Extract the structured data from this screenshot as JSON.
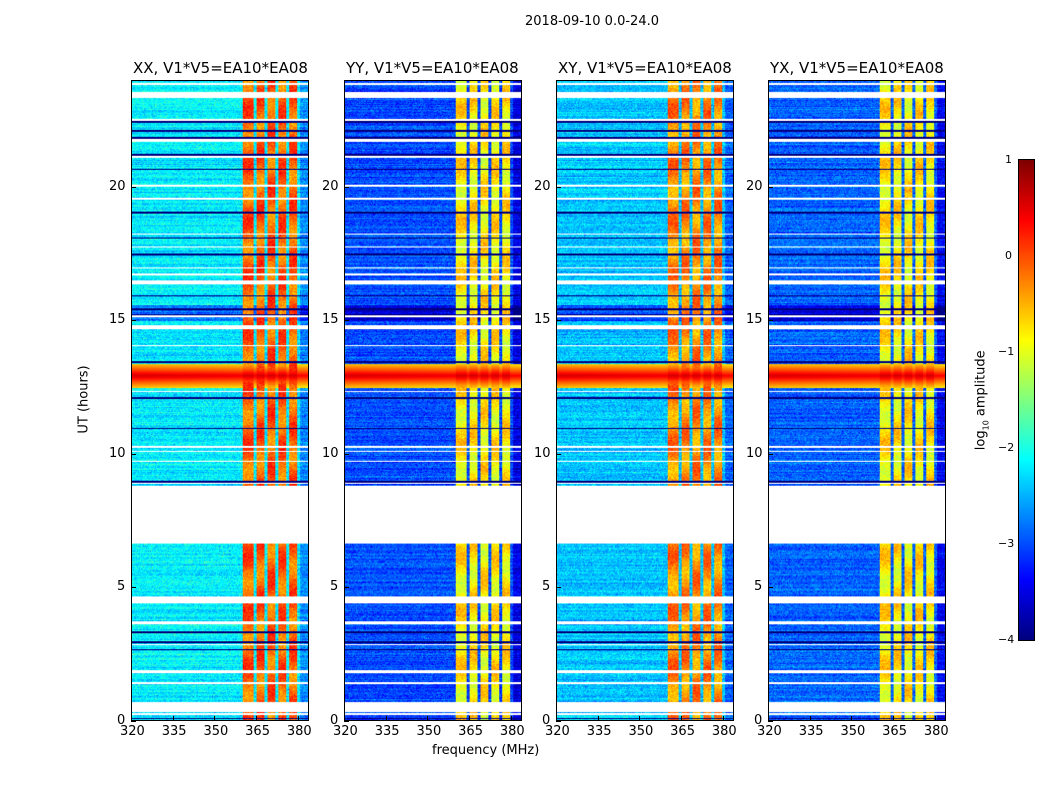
{
  "chart_data": {
    "type": "heatmap",
    "title": "2018-09-10 0.0-24.0",
    "xlabel": "frequency (MHz)",
    "ylabel": "UT (hours)",
    "xlim": [
      320,
      384
    ],
    "ylim": [
      0,
      24
    ],
    "xticks": [
      "320",
      "335",
      "350",
      "365",
      "380"
    ],
    "yticks": [
      "0",
      "5",
      "10",
      "15",
      "20"
    ],
    "colorbar": {
      "label": "log10 amplitude",
      "label_main": "log",
      "label_sub": "10",
      "label_rest": " amplitude",
      "colormap": "jet",
      "range": [
        -4,
        1
      ],
      "ticks": [
        "1",
        "0",
        "−1",
        "−2",
        "−3",
        "−4"
      ]
    },
    "flagged_time_ranges_hours": [
      [
        0.3,
        0.7
      ],
      [
        4.4,
        4.65
      ],
      [
        6.65,
        8.7
      ],
      [
        23.4,
        23.6
      ]
    ],
    "rfi_bands_mhz": [
      [
        360,
        364
      ],
      [
        365,
        368
      ],
      [
        369,
        372
      ],
      [
        373,
        376
      ],
      [
        377,
        380
      ]
    ],
    "broadband_rfi_hours": [
      12.5,
      13.4
    ],
    "panels": [
      {
        "title": "XX, V1*V5=EA10*EA08",
        "background_log_amp": -2.2,
        "rfi_log_amp": -0.1
      },
      {
        "title": "YY, V1*V5=EA10*EA08",
        "background_log_amp": -3.0,
        "rfi_log_amp": -0.8
      },
      {
        "title": "XY, V1*V5=EA10*EA08",
        "background_log_amp": -2.4,
        "rfi_log_amp": -0.3
      },
      {
        "title": "YX, V1*V5=EA10*EA08",
        "background_log_amp": -2.9,
        "rfi_log_amp": -0.8
      }
    ]
  }
}
